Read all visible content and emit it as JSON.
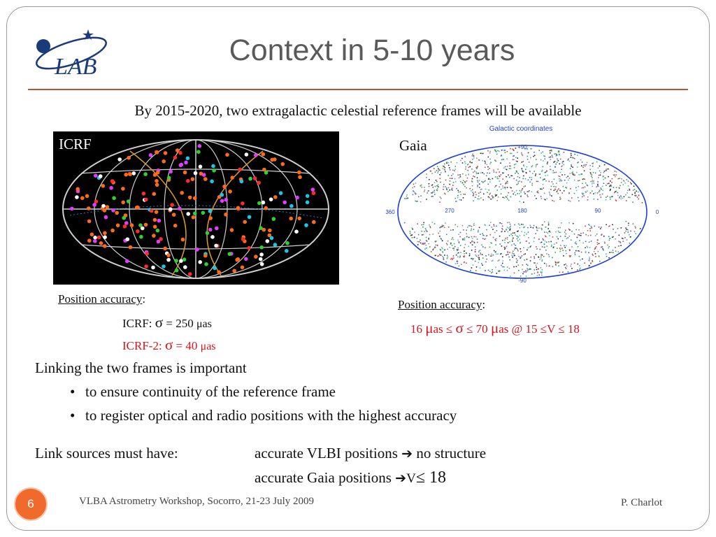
{
  "slide": {
    "title": "Context in 5-10 years",
    "subtitle": "By 2015-2020, two extragalactic celestial reference frames will be available",
    "logo_text": "LAB"
  },
  "icrf": {
    "image_label": "ICRF",
    "accuracy_label": "Position accuracy",
    "accuracy_colon": ":",
    "line1_prefix": "ICRF: ",
    "line1_sigma": "σ",
    "line1_value": " = 250 ",
    "line1_unit": "μas",
    "line2_prefix": "ICRF-2: ",
    "line2_sigma": "σ",
    "line2_value": " = 40 ",
    "line2_unit": "μas"
  },
  "gaia": {
    "image_label": "Gaia",
    "map_title": "Galactic coordinates",
    "lat_top": "+90",
    "lat_bottom": "-90",
    "lon_labels": [
      "360",
      "270",
      "180",
      "90",
      "0"
    ],
    "accuracy_label": "Position accuracy",
    "accuracy_colon": ":",
    "range_a": "16 ",
    "range_mu1": "μ",
    "range_b": "as ≤ ",
    "range_sigma": "σ",
    "range_c": " ≤ 70 ",
    "range_mu2": "μ",
    "range_d": "as @ 15 ≤V ≤ 18"
  },
  "body": {
    "linking": "Linking the two frames is important",
    "bullets": [
      "to ensure continuity of the reference frame",
      "to register optical and radio positions with the highest accuracy"
    ],
    "link_sources": "Link sources must have:",
    "req1_text": "accurate VLBI positions ",
    "req1_arrow": "➔",
    "req1_result": " no structure",
    "req2_text": "accurate Gaia positions ",
    "req2_arrow": "➔",
    "req2_v": "V",
    "req2_result": "≤ 18"
  },
  "footer": {
    "page_number": "6",
    "workshop": "VLBA Astrometry Workshop, Socorro, 21-23 July 2009",
    "author": "P. Charlot"
  },
  "colors": {
    "rule": "#c0532b",
    "accent_red": "#d8141c",
    "page_badge": "#f06a2c",
    "gaia_outline": "#1d3fd6"
  }
}
